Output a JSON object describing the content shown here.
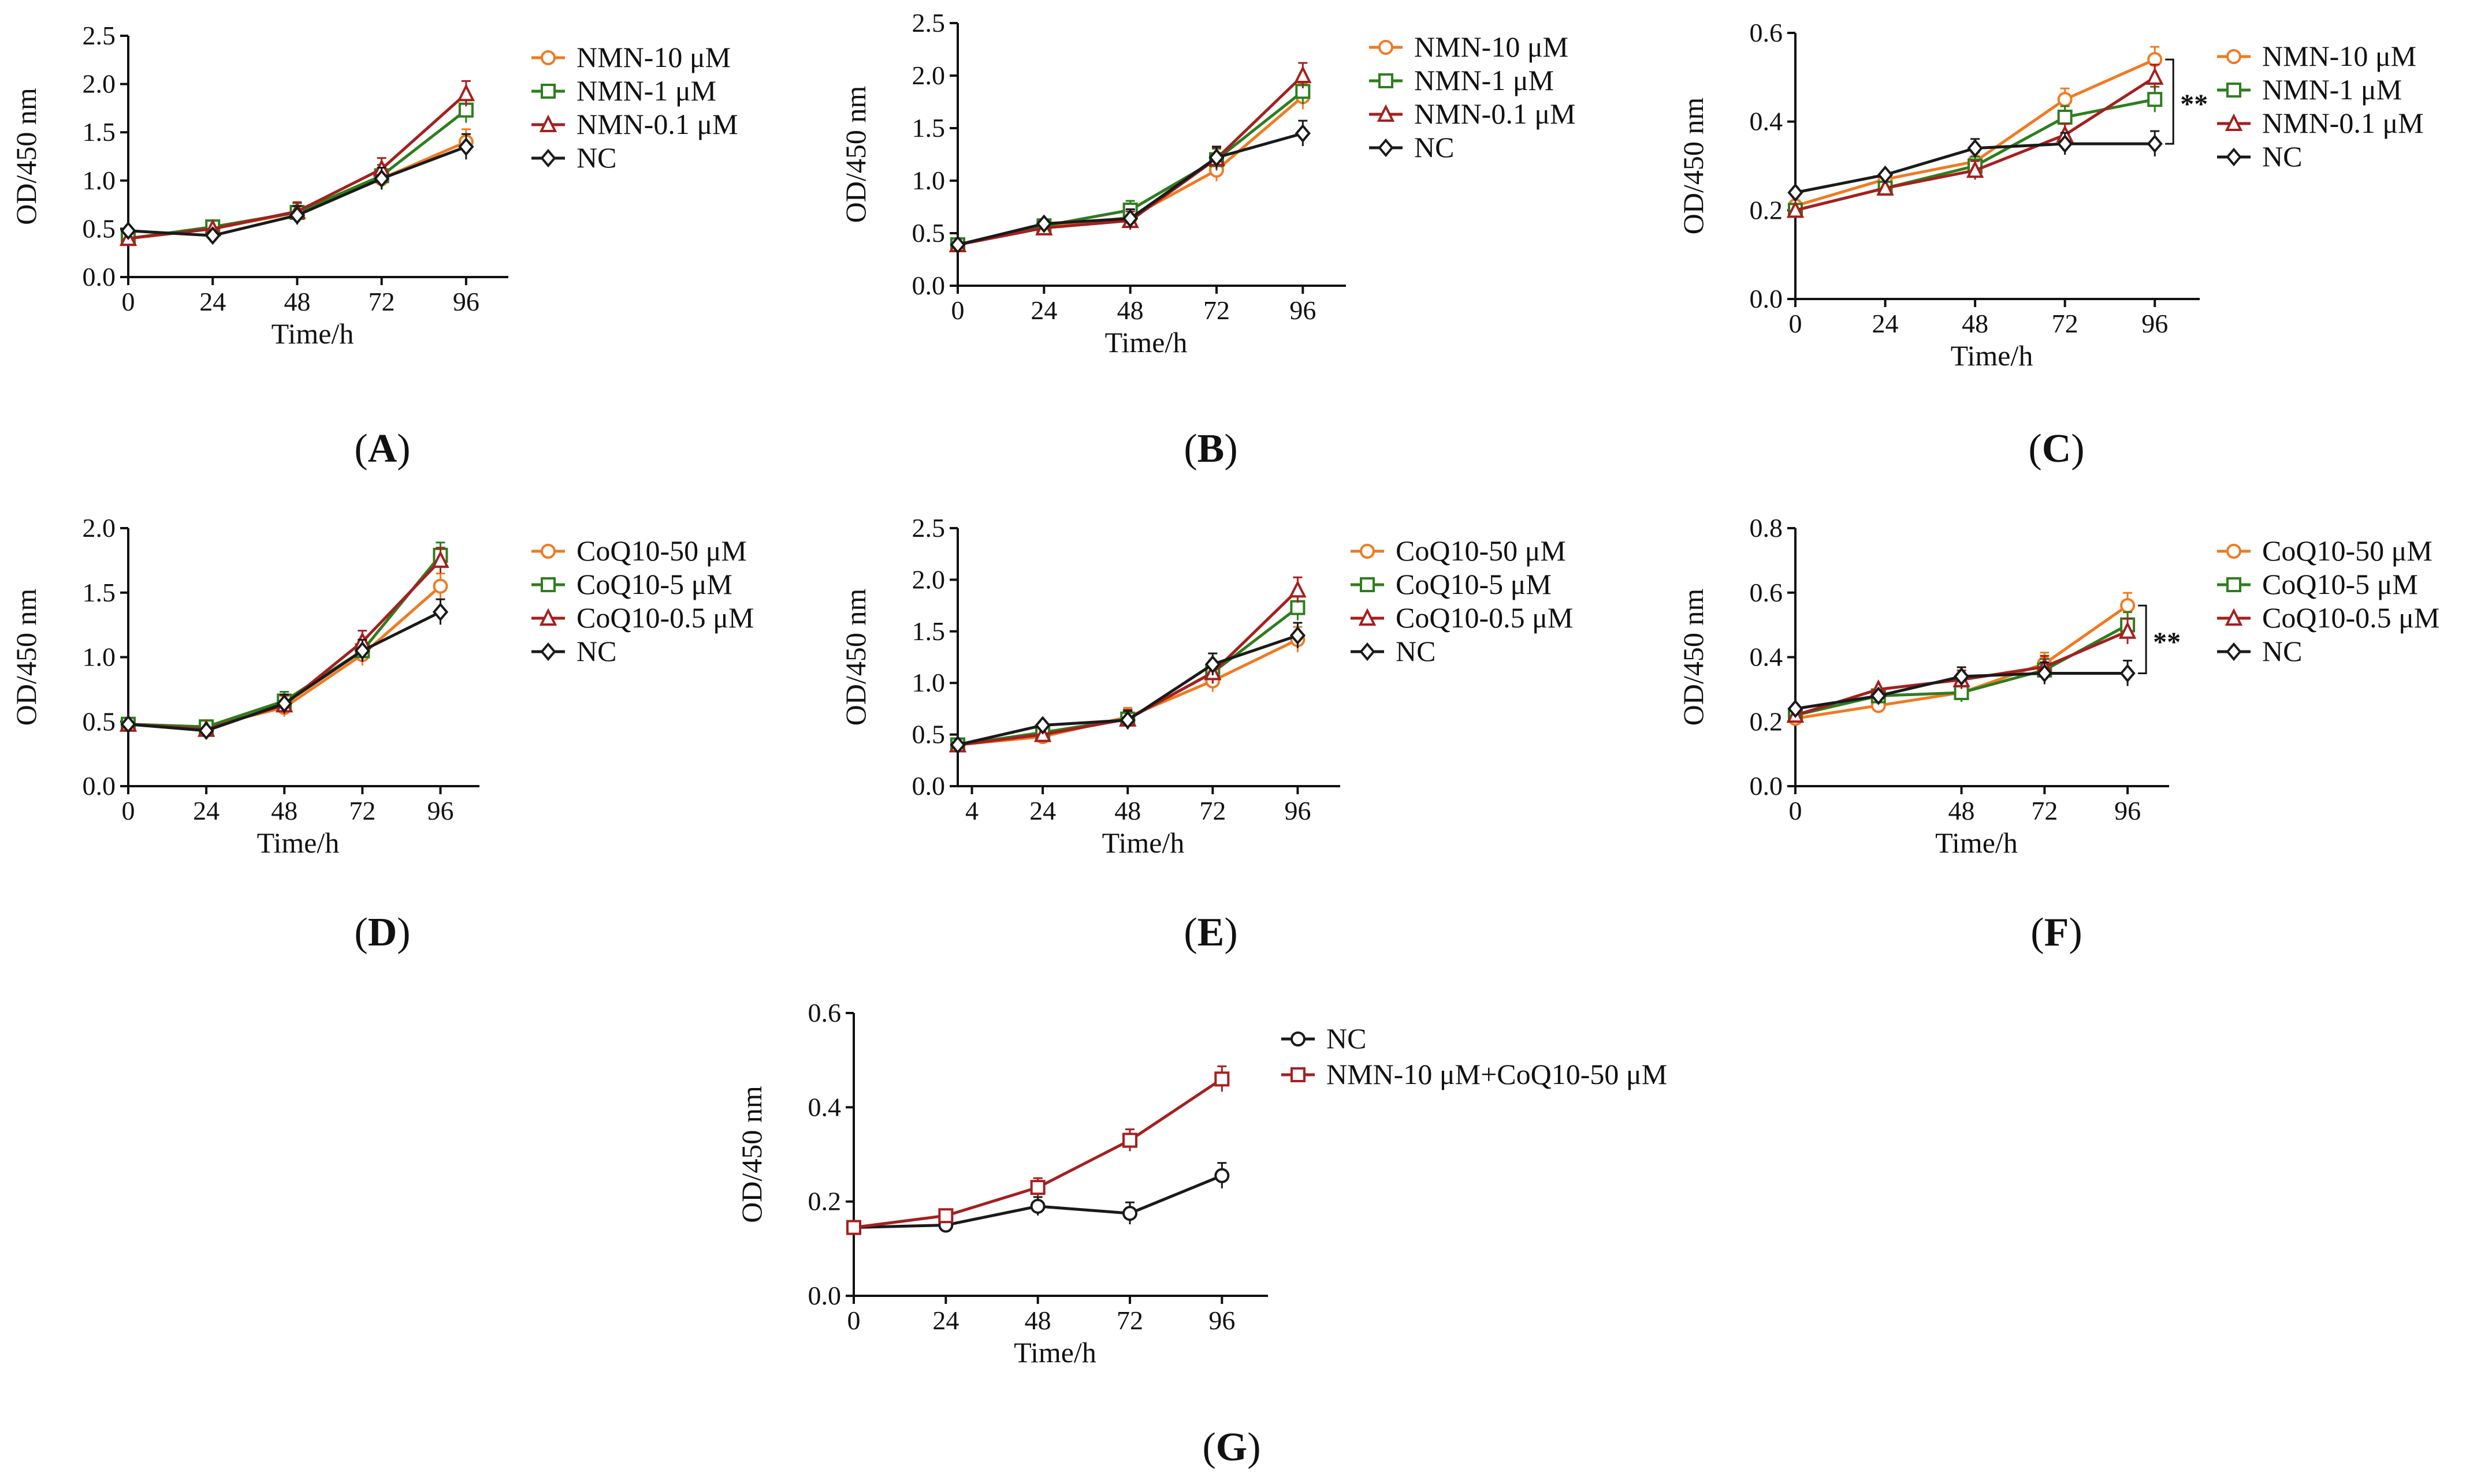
{
  "figure": {
    "colors": {
      "orange": "#F07A22",
      "green": "#2E7D1E",
      "red": "#A51F1F",
      "black": "#1A1A1A"
    }
  },
  "chart_data": [
    {
      "id": "A",
      "panel_label": "A",
      "type": "line",
      "xlabel": "Time/h",
      "ylabel": "OD/450 nm",
      "x": [
        0,
        24,
        48,
        72,
        96
      ],
      "xticks": [
        0,
        24,
        48,
        72,
        96
      ],
      "xtick_labels": [
        "0",
        "24",
        "48",
        "72",
        "96"
      ],
      "xlim": [
        0,
        108
      ],
      "ylim": [
        0,
        2.5
      ],
      "yticks": [
        0,
        0.5,
        1.0,
        1.5,
        2.0,
        2.5
      ],
      "ytick_labels": [
        "0.0",
        "0.5",
        "1.0",
        "1.5",
        "2.0",
        "2.5"
      ],
      "series": [
        {
          "name": "NMN-10 μM",
          "color": "orange",
          "marker": "circle",
          "values": [
            0.4,
            0.5,
            0.67,
            1.02,
            1.4
          ]
        },
        {
          "name": "NMN-1 μM",
          "color": "green",
          "marker": "square",
          "values": [
            0.4,
            0.52,
            0.67,
            1.05,
            1.73
          ]
        },
        {
          "name": "NMN-0.1 μM",
          "color": "red",
          "marker": "triangle",
          "values": [
            0.4,
            0.5,
            0.68,
            1.12,
            1.9
          ]
        },
        {
          "name": "NC",
          "color": "black",
          "marker": "diamond",
          "values": [
            0.48,
            0.43,
            0.64,
            1.02,
            1.35
          ]
        }
      ]
    },
    {
      "id": "B",
      "panel_label": "B",
      "type": "line",
      "xlabel": "Time/h",
      "ylabel": "OD/450 nm",
      "x": [
        0,
        24,
        48,
        72,
        96
      ],
      "xticks": [
        0,
        24,
        48,
        72,
        96
      ],
      "xtick_labels": [
        "0",
        "24",
        "48",
        "72",
        "96"
      ],
      "xlim": [
        0,
        108
      ],
      "ylim": [
        0,
        2.5
      ],
      "yticks": [
        0,
        0.5,
        1.0,
        1.5,
        2.0,
        2.5
      ],
      "ytick_labels": [
        "0.0",
        "0.5",
        "1.0",
        "1.5",
        "2.0",
        "2.5"
      ],
      "series": [
        {
          "name": "NMN-10 μM",
          "color": "orange",
          "marker": "circle",
          "values": [
            0.39,
            0.56,
            0.65,
            1.1,
            1.8
          ]
        },
        {
          "name": "NMN-1 μM",
          "color": "green",
          "marker": "square",
          "values": [
            0.39,
            0.57,
            0.72,
            1.2,
            1.85
          ]
        },
        {
          "name": "NMN-0.1 μM",
          "color": "red",
          "marker": "triangle",
          "values": [
            0.39,
            0.55,
            0.62,
            1.21,
            2.0
          ]
        },
        {
          "name": "NC",
          "color": "black",
          "marker": "diamond",
          "values": [
            0.39,
            0.59,
            0.64,
            1.22,
            1.45
          ]
        }
      ]
    },
    {
      "id": "C",
      "panel_label": "C",
      "type": "line",
      "xlabel": "Time/h",
      "ylabel": "OD/450 nm",
      "x": [
        0,
        24,
        48,
        72,
        96
      ],
      "xticks": [
        0,
        24,
        48,
        72,
        96
      ],
      "xtick_labels": [
        "0",
        "24",
        "48",
        "72",
        "96"
      ],
      "xlim": [
        0,
        108
      ],
      "ylim": [
        0,
        0.6
      ],
      "yticks": [
        0,
        0.2,
        0.4,
        0.6
      ],
      "ytick_labels": [
        "0.0",
        "0.2",
        "0.4",
        "0.6"
      ],
      "significance": "**",
      "series": [
        {
          "name": "NMN-10 μM",
          "color": "orange",
          "marker": "circle",
          "values": [
            0.21,
            0.27,
            0.31,
            0.45,
            0.54
          ]
        },
        {
          "name": "NMN-1 μM",
          "color": "green",
          "marker": "square",
          "values": [
            0.2,
            0.25,
            0.3,
            0.41,
            0.45
          ]
        },
        {
          "name": "NMN-0.1 μM",
          "color": "red",
          "marker": "triangle",
          "values": [
            0.2,
            0.25,
            0.29,
            0.37,
            0.5
          ]
        },
        {
          "name": "NC",
          "color": "black",
          "marker": "diamond",
          "values": [
            0.24,
            0.28,
            0.34,
            0.35,
            0.35
          ]
        }
      ]
    },
    {
      "id": "D",
      "panel_label": "D",
      "type": "line",
      "xlabel": "Time/h",
      "ylabel": "OD/450 nm",
      "x": [
        0,
        24,
        48,
        72,
        96
      ],
      "xticks": [
        0,
        24,
        48,
        72,
        96
      ],
      "xtick_labels": [
        "0",
        "24",
        "48",
        "72",
        "96"
      ],
      "xlim": [
        0,
        108
      ],
      "ylim": [
        0,
        2.0
      ],
      "yticks": [
        0,
        0.5,
        1.0,
        1.5,
        2.0
      ],
      "ytick_labels": [
        "0.0",
        "0.5",
        "1.0",
        "1.5",
        "2.0"
      ],
      "series": [
        {
          "name": "CoQ10-50 μM",
          "color": "orange",
          "marker": "circle",
          "values": [
            0.48,
            0.46,
            0.61,
            1.02,
            1.55
          ]
        },
        {
          "name": "CoQ10-5 μM",
          "color": "green",
          "marker": "square",
          "values": [
            0.48,
            0.46,
            0.66,
            1.05,
            1.79
          ]
        },
        {
          "name": "CoQ10-0.5 μM",
          "color": "red",
          "marker": "triangle",
          "values": [
            0.48,
            0.44,
            0.63,
            1.12,
            1.75
          ]
        },
        {
          "name": "NC",
          "color": "black",
          "marker": "diamond",
          "values": [
            0.48,
            0.43,
            0.64,
            1.05,
            1.35
          ]
        }
      ]
    },
    {
      "id": "E",
      "panel_label": "E",
      "type": "line",
      "xlabel": "Time/h",
      "ylabel": "OD/450 nm",
      "x": [
        0,
        24,
        48,
        72,
        96
      ],
      "xticks": [
        4,
        24,
        48,
        72,
        96
      ],
      "xtick_labels": [
        "4",
        "24",
        "48",
        "72",
        "96"
      ],
      "xlim": [
        0,
        108
      ],
      "ylim": [
        0,
        2.5
      ],
      "yticks": [
        0,
        0.5,
        1.0,
        1.5,
        2.0,
        2.5
      ],
      "ytick_labels": [
        "0.0",
        "0.5",
        "1.0",
        "1.5",
        "2.0",
        "2.5"
      ],
      "series": [
        {
          "name": "CoQ10-50 μM",
          "color": "orange",
          "marker": "circle",
          "values": [
            0.4,
            0.48,
            0.67,
            1.02,
            1.42
          ]
        },
        {
          "name": "CoQ10-5 μM",
          "color": "green",
          "marker": "square",
          "values": [
            0.4,
            0.52,
            0.65,
            1.1,
            1.73
          ]
        },
        {
          "name": "CoQ10-0.5 μM",
          "color": "red",
          "marker": "triangle",
          "values": [
            0.4,
            0.5,
            0.65,
            1.1,
            1.9
          ]
        },
        {
          "name": "NC",
          "color": "black",
          "marker": "diamond",
          "values": [
            0.4,
            0.59,
            0.64,
            1.18,
            1.46
          ]
        }
      ]
    },
    {
      "id": "F",
      "panel_label": "F",
      "type": "line",
      "xlabel": "Time/h",
      "ylabel": "OD/450 nm",
      "x": [
        0,
        24,
        48,
        72,
        96
      ],
      "xticks": [
        0,
        48,
        72,
        96
      ],
      "xtick_labels": [
        "0",
        "48",
        "72",
        "96"
      ],
      "xlim": [
        0,
        108
      ],
      "ylim": [
        0,
        0.8
      ],
      "yticks": [
        0,
        0.2,
        0.4,
        0.6,
        0.8
      ],
      "ytick_labels": [
        "0.0",
        "0.2",
        "0.4",
        "0.6",
        "0.8"
      ],
      "significance": "**",
      "series": [
        {
          "name": "CoQ10-50 μM",
          "color": "orange",
          "marker": "circle",
          "values": [
            0.21,
            0.25,
            0.29,
            0.38,
            0.56
          ]
        },
        {
          "name": "CoQ10-5 μM",
          "color": "green",
          "marker": "square",
          "values": [
            0.22,
            0.28,
            0.29,
            0.36,
            0.5
          ]
        },
        {
          "name": "CoQ10-0.5 μM",
          "color": "red",
          "marker": "triangle",
          "values": [
            0.22,
            0.3,
            0.33,
            0.37,
            0.48
          ]
        },
        {
          "name": "NC",
          "color": "black",
          "marker": "diamond",
          "values": [
            0.24,
            0.28,
            0.34,
            0.35,
            0.35
          ]
        }
      ]
    },
    {
      "id": "G",
      "panel_label": "G",
      "type": "line",
      "xlabel": "Time/h",
      "ylabel": "OD/450 nm",
      "x": [
        0,
        24,
        48,
        72,
        96
      ],
      "xticks": [
        0,
        24,
        48,
        72,
        96
      ],
      "xtick_labels": [
        "0",
        "24",
        "48",
        "72",
        "96"
      ],
      "xlim": [
        0,
        108
      ],
      "ylim": [
        0,
        0.6
      ],
      "yticks": [
        0,
        0.2,
        0.4,
        0.6
      ],
      "ytick_labels": [
        "0.0",
        "0.2",
        "0.4",
        "0.6"
      ],
      "series": [
        {
          "name": "NC",
          "color": "black",
          "marker": "circle",
          "values": [
            0.145,
            0.15,
            0.19,
            0.175,
            0.255
          ]
        },
        {
          "name": "NMN-10 μM+CoQ10-50 μM",
          "color": "red",
          "marker": "square",
          "values": [
            0.145,
            0.17,
            0.23,
            0.33,
            0.46
          ]
        }
      ]
    }
  ]
}
